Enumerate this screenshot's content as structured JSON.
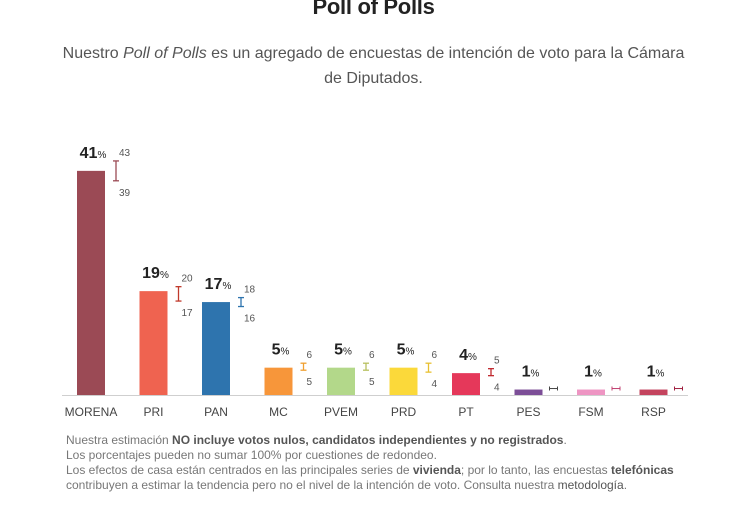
{
  "header": {
    "title": "Poll of Polls",
    "subtitle_pre": "Nuestro ",
    "subtitle_em": "Poll of Polls",
    "subtitle_post": " es un agregado de encuestas de intención de voto para la Cámara de Diputados."
  },
  "chart_data": {
    "type": "bar",
    "title": "Poll of Polls",
    "unit_label": "%",
    "categories": [
      "MORENA",
      "PRI",
      "PAN",
      "MC",
      "PVEM",
      "PRD",
      "PT",
      "PES",
      "FSM",
      "RSP"
    ],
    "values": [
      41,
      19,
      17,
      5,
      5,
      5,
      4,
      1,
      1,
      1
    ],
    "ci_high": [
      43,
      20,
      18,
      6,
      6,
      6,
      5,
      null,
      null,
      null
    ],
    "ci_low": [
      39,
      17,
      16,
      5,
      5,
      4,
      4,
      null,
      null,
      null
    ],
    "colors": [
      "#9b4a55",
      "#ef6350",
      "#2e74ae",
      "#f7963a",
      "#b3d88a",
      "#fbd93a",
      "#e5385a",
      "#7c4e97",
      "#ee95c3",
      "#c4445e"
    ],
    "ci_colors": [
      "#9b4a55",
      "#c0392b",
      "#2e74ae",
      "#f0a030",
      "#b8c060",
      "#e8c030",
      "#c0282e",
      "#444444",
      "#c04070",
      "#a02040"
    ],
    "ylim": [
      0,
      45
    ],
    "grid": false,
    "legend": "none"
  },
  "notes": {
    "l1_pre": "Nuestra estimación ",
    "l1_bold": "NO incluye votos nulos, candidatos independientes y no registrados",
    "l1_post": ".",
    "l2": "Los porcentajes pueden no sumar 100% por cuestiones de redondeo.",
    "l3_pre": "Los efectos de casa están centrados en las principales series de ",
    "l3_bold1": "vivienda",
    "l3_mid": "; por lo tanto, las encuestas ",
    "l3_bold2": "telefónicas",
    "l4_pre": "contribuyen a estimar la tendencia pero no el nivel de la intención de voto. Consulta nuestra ",
    "l4_link": "metodología",
    "l4_post": "."
  }
}
